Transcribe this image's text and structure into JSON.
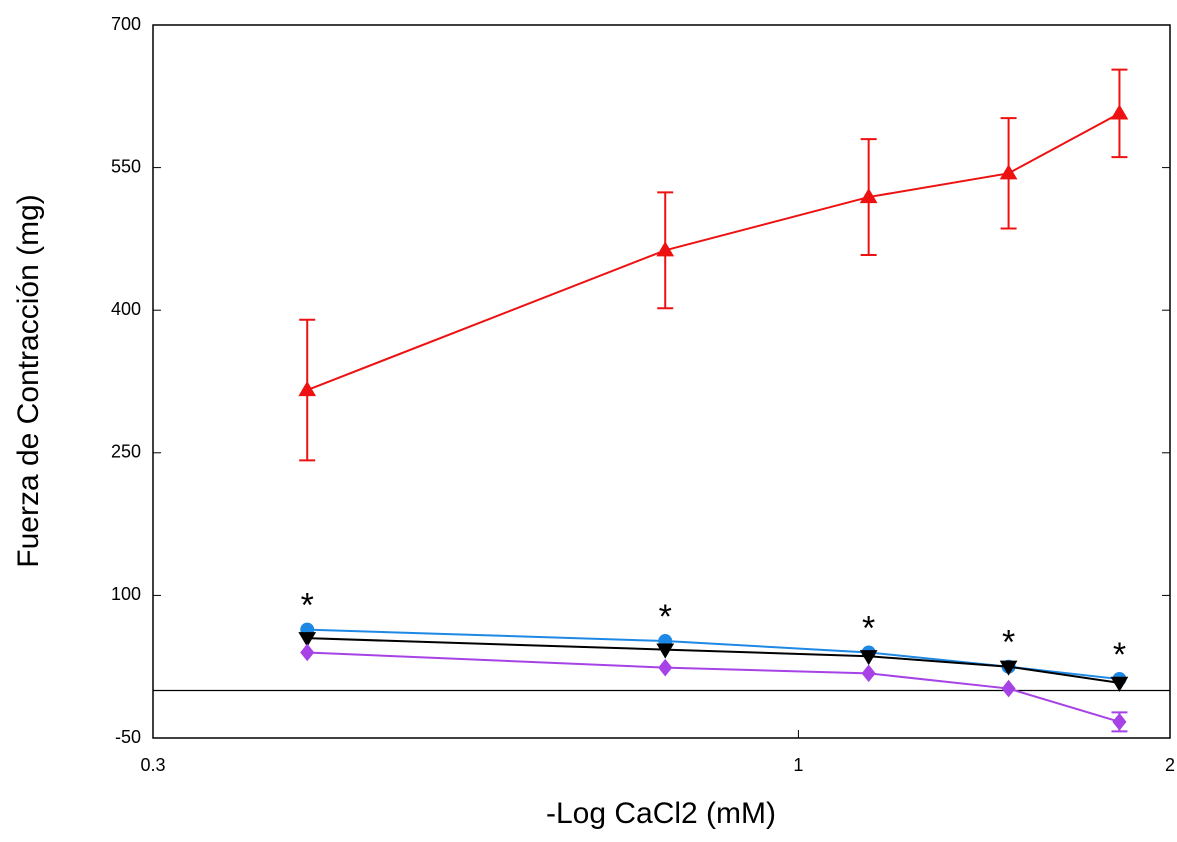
{
  "chart_data": {
    "type": "line",
    "xlabel": "-Log CaCl2 (mM)",
    "ylabel": "Fuerza de Contracción (mg)",
    "x": [
      0.4,
      0.78,
      1.14,
      1.48,
      1.82
    ],
    "xlog": true,
    "xlim": [
      0.3,
      2
    ],
    "xticks": [
      0.3,
      1,
      2
    ],
    "ylim": [
      -50,
      700
    ],
    "yticks": [
      -50,
      100,
      250,
      400,
      550,
      700
    ],
    "zero_line": true,
    "series": [
      {
        "color": "#ee1111",
        "marker": "triangle-up",
        "values": [
          316,
          463,
          519,
          544,
          607
        ],
        "errors": [
          74,
          61,
          61,
          58,
          46
        ]
      },
      {
        "color": "#1e88e5",
        "marker": "circle",
        "values": [
          64,
          52,
          40,
          25,
          12
        ]
      },
      {
        "color": "#000000",
        "marker": "triangle-down",
        "values": [
          55,
          43,
          36,
          25,
          8
        ]
      },
      {
        "color": "#a642e6",
        "marker": "diamond",
        "values": [
          40,
          24,
          18,
          2,
          -33
        ],
        "errors": [
          null,
          null,
          null,
          null,
          10
        ]
      }
    ],
    "annotations": [
      "*",
      "*",
      "*",
      "*",
      "*"
    ]
  }
}
